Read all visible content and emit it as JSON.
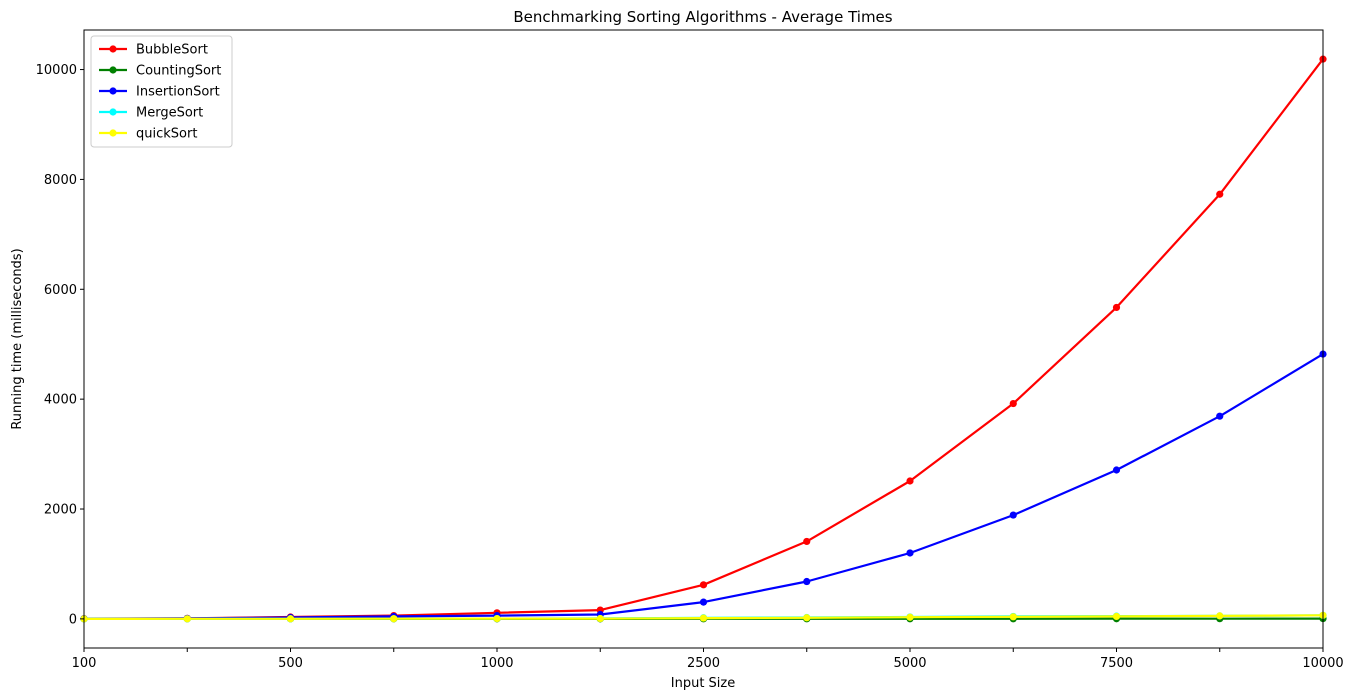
{
  "chart_data": {
    "type": "line",
    "title": "Benchmarking Sorting Algorithms - Average Times",
    "xlabel": "Input Size",
    "ylabel": "Running time (milliseconds)",
    "categories": [
      "100",
      "",
      "500",
      "",
      "1000",
      "",
      "2500",
      "",
      "5000",
      "",
      "7500",
      "",
      "10000"
    ],
    "yticks": [
      0,
      2000,
      4000,
      6000,
      8000,
      10000
    ],
    "ylim": [
      -530,
      10720
    ],
    "grid": false,
    "legend_position": "top-left",
    "series": [
      {
        "name": "BubbleSort",
        "color": "#ff0000",
        "values": [
          5,
          10,
          35,
          60,
          110,
          160,
          620,
          1410,
          2510,
          3920,
          5670,
          7730,
          10190
        ]
      },
      {
        "name": "CountingSort",
        "color": "#008000",
        "values": [
          0,
          0,
          0,
          0,
          0,
          0,
          1,
          1,
          2,
          2,
          3,
          4,
          5
        ]
      },
      {
        "name": "InsertionSort",
        "color": "#0000ff",
        "values": [
          3,
          8,
          25,
          45,
          60,
          80,
          305,
          680,
          1200,
          1890,
          2710,
          3690,
          4820
        ]
      },
      {
        "name": "MergeSort",
        "color": "#00ffff",
        "values": [
          0,
          1,
          2,
          4,
          6,
          8,
          20,
          25,
          35,
          45,
          50,
          55,
          65
        ]
      },
      {
        "name": "quickSort",
        "color": "#ffff00",
        "values": [
          0,
          1,
          2,
          3,
          5,
          6,
          15,
          20,
          30,
          38,
          45,
          55,
          65
        ]
      }
    ]
  }
}
